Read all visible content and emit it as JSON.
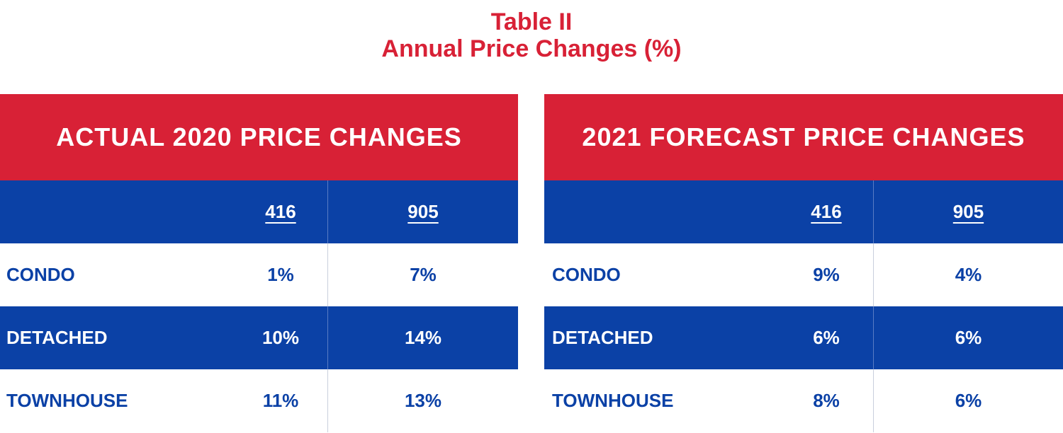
{
  "title": [
    "Table II",
    "Annual Price Changes (%)"
  ],
  "colors": {
    "accent_red": "#d82136",
    "accent_blue": "#0b41a6"
  },
  "chart_data": [
    {
      "type": "table",
      "title": "ACTUAL 2020 PRICE CHANGES",
      "columns": [
        "416",
        "905"
      ],
      "rows": [
        {
          "label": "CONDO",
          "values": [
            "1%",
            "7%"
          ]
        },
        {
          "label": "DETACHED",
          "values": [
            "10%",
            "14%"
          ]
        },
        {
          "label": "TOWNHOUSE",
          "values": [
            "11%",
            "13%"
          ]
        }
      ]
    },
    {
      "type": "table",
      "title": "2021 FORECAST PRICE CHANGES",
      "columns": [
        "416",
        "905"
      ],
      "rows": [
        {
          "label": "CONDO",
          "values": [
            "9%",
            "4%"
          ]
        },
        {
          "label": "DETACHED",
          "values": [
            "6%",
            "6%"
          ]
        },
        {
          "label": "TOWNHOUSE",
          "values": [
            "8%",
            "6%"
          ]
        }
      ]
    }
  ]
}
